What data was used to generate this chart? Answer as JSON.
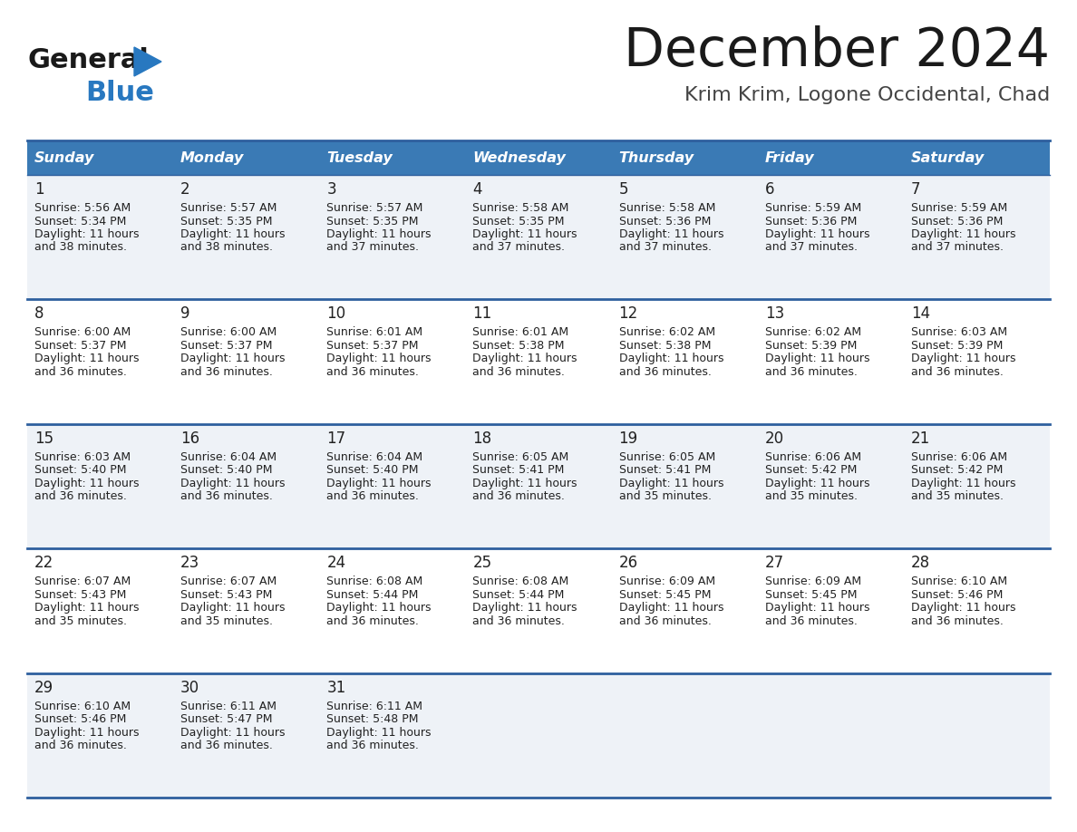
{
  "title": "December 2024",
  "subtitle": "Krim Krim, Logone Occidental, Chad",
  "days_of_week": [
    "Sunday",
    "Monday",
    "Tuesday",
    "Wednesday",
    "Thursday",
    "Friday",
    "Saturday"
  ],
  "header_bg": "#3a7ab5",
  "header_text": "#ffffff",
  "row_bg_odd": "#eef2f7",
  "row_bg_even": "#ffffff",
  "cell_text_color": "#222222",
  "border_color": "#2e5f9e",
  "title_color": "#1a1a1a",
  "subtitle_color": "#444444",
  "logo_general_color": "#1a1a1a",
  "logo_blue_color": "#2878c0",
  "calendar": [
    [
      {
        "day": 1,
        "sunrise": "5:56 AM",
        "sunset": "5:34 PM",
        "daylight_h": "11 hours",
        "daylight_m": "and 38 minutes."
      },
      {
        "day": 2,
        "sunrise": "5:57 AM",
        "sunset": "5:35 PM",
        "daylight_h": "11 hours",
        "daylight_m": "and 38 minutes."
      },
      {
        "day": 3,
        "sunrise": "5:57 AM",
        "sunset": "5:35 PM",
        "daylight_h": "11 hours",
        "daylight_m": "and 37 minutes."
      },
      {
        "day": 4,
        "sunrise": "5:58 AM",
        "sunset": "5:35 PM",
        "daylight_h": "11 hours",
        "daylight_m": "and 37 minutes."
      },
      {
        "day": 5,
        "sunrise": "5:58 AM",
        "sunset": "5:36 PM",
        "daylight_h": "11 hours",
        "daylight_m": "and 37 minutes."
      },
      {
        "day": 6,
        "sunrise": "5:59 AM",
        "sunset": "5:36 PM",
        "daylight_h": "11 hours",
        "daylight_m": "and 37 minutes."
      },
      {
        "day": 7,
        "sunrise": "5:59 AM",
        "sunset": "5:36 PM",
        "daylight_h": "11 hours",
        "daylight_m": "and 37 minutes."
      }
    ],
    [
      {
        "day": 8,
        "sunrise": "6:00 AM",
        "sunset": "5:37 PM",
        "daylight_h": "11 hours",
        "daylight_m": "and 36 minutes."
      },
      {
        "day": 9,
        "sunrise": "6:00 AM",
        "sunset": "5:37 PM",
        "daylight_h": "11 hours",
        "daylight_m": "and 36 minutes."
      },
      {
        "day": 10,
        "sunrise": "6:01 AM",
        "sunset": "5:37 PM",
        "daylight_h": "11 hours",
        "daylight_m": "and 36 minutes."
      },
      {
        "day": 11,
        "sunrise": "6:01 AM",
        "sunset": "5:38 PM",
        "daylight_h": "11 hours",
        "daylight_m": "and 36 minutes."
      },
      {
        "day": 12,
        "sunrise": "6:02 AM",
        "sunset": "5:38 PM",
        "daylight_h": "11 hours",
        "daylight_m": "and 36 minutes."
      },
      {
        "day": 13,
        "sunrise": "6:02 AM",
        "sunset": "5:39 PM",
        "daylight_h": "11 hours",
        "daylight_m": "and 36 minutes."
      },
      {
        "day": 14,
        "sunrise": "6:03 AM",
        "sunset": "5:39 PM",
        "daylight_h": "11 hours",
        "daylight_m": "and 36 minutes."
      }
    ],
    [
      {
        "day": 15,
        "sunrise": "6:03 AM",
        "sunset": "5:40 PM",
        "daylight_h": "11 hours",
        "daylight_m": "and 36 minutes."
      },
      {
        "day": 16,
        "sunrise": "6:04 AM",
        "sunset": "5:40 PM",
        "daylight_h": "11 hours",
        "daylight_m": "and 36 minutes."
      },
      {
        "day": 17,
        "sunrise": "6:04 AM",
        "sunset": "5:40 PM",
        "daylight_h": "11 hours",
        "daylight_m": "and 36 minutes."
      },
      {
        "day": 18,
        "sunrise": "6:05 AM",
        "sunset": "5:41 PM",
        "daylight_h": "11 hours",
        "daylight_m": "and 36 minutes."
      },
      {
        "day": 19,
        "sunrise": "6:05 AM",
        "sunset": "5:41 PM",
        "daylight_h": "11 hours",
        "daylight_m": "and 35 minutes."
      },
      {
        "day": 20,
        "sunrise": "6:06 AM",
        "sunset": "5:42 PM",
        "daylight_h": "11 hours",
        "daylight_m": "and 35 minutes."
      },
      {
        "day": 21,
        "sunrise": "6:06 AM",
        "sunset": "5:42 PM",
        "daylight_h": "11 hours",
        "daylight_m": "and 35 minutes."
      }
    ],
    [
      {
        "day": 22,
        "sunrise": "6:07 AM",
        "sunset": "5:43 PM",
        "daylight_h": "11 hours",
        "daylight_m": "and 35 minutes."
      },
      {
        "day": 23,
        "sunrise": "6:07 AM",
        "sunset": "5:43 PM",
        "daylight_h": "11 hours",
        "daylight_m": "and 35 minutes."
      },
      {
        "day": 24,
        "sunrise": "6:08 AM",
        "sunset": "5:44 PM",
        "daylight_h": "11 hours",
        "daylight_m": "and 36 minutes."
      },
      {
        "day": 25,
        "sunrise": "6:08 AM",
        "sunset": "5:44 PM",
        "daylight_h": "11 hours",
        "daylight_m": "and 36 minutes."
      },
      {
        "day": 26,
        "sunrise": "6:09 AM",
        "sunset": "5:45 PM",
        "daylight_h": "11 hours",
        "daylight_m": "and 36 minutes."
      },
      {
        "day": 27,
        "sunrise": "6:09 AM",
        "sunset": "5:45 PM",
        "daylight_h": "11 hours",
        "daylight_m": "and 36 minutes."
      },
      {
        "day": 28,
        "sunrise": "6:10 AM",
        "sunset": "5:46 PM",
        "daylight_h": "11 hours",
        "daylight_m": "and 36 minutes."
      }
    ],
    [
      {
        "day": 29,
        "sunrise": "6:10 AM",
        "sunset": "5:46 PM",
        "daylight_h": "11 hours",
        "daylight_m": "and 36 minutes."
      },
      {
        "day": 30,
        "sunrise": "6:11 AM",
        "sunset": "5:47 PM",
        "daylight_h": "11 hours",
        "daylight_m": "and 36 minutes."
      },
      {
        "day": 31,
        "sunrise": "6:11 AM",
        "sunset": "5:48 PM",
        "daylight_h": "11 hours",
        "daylight_m": "and 36 minutes."
      },
      null,
      null,
      null,
      null
    ]
  ]
}
